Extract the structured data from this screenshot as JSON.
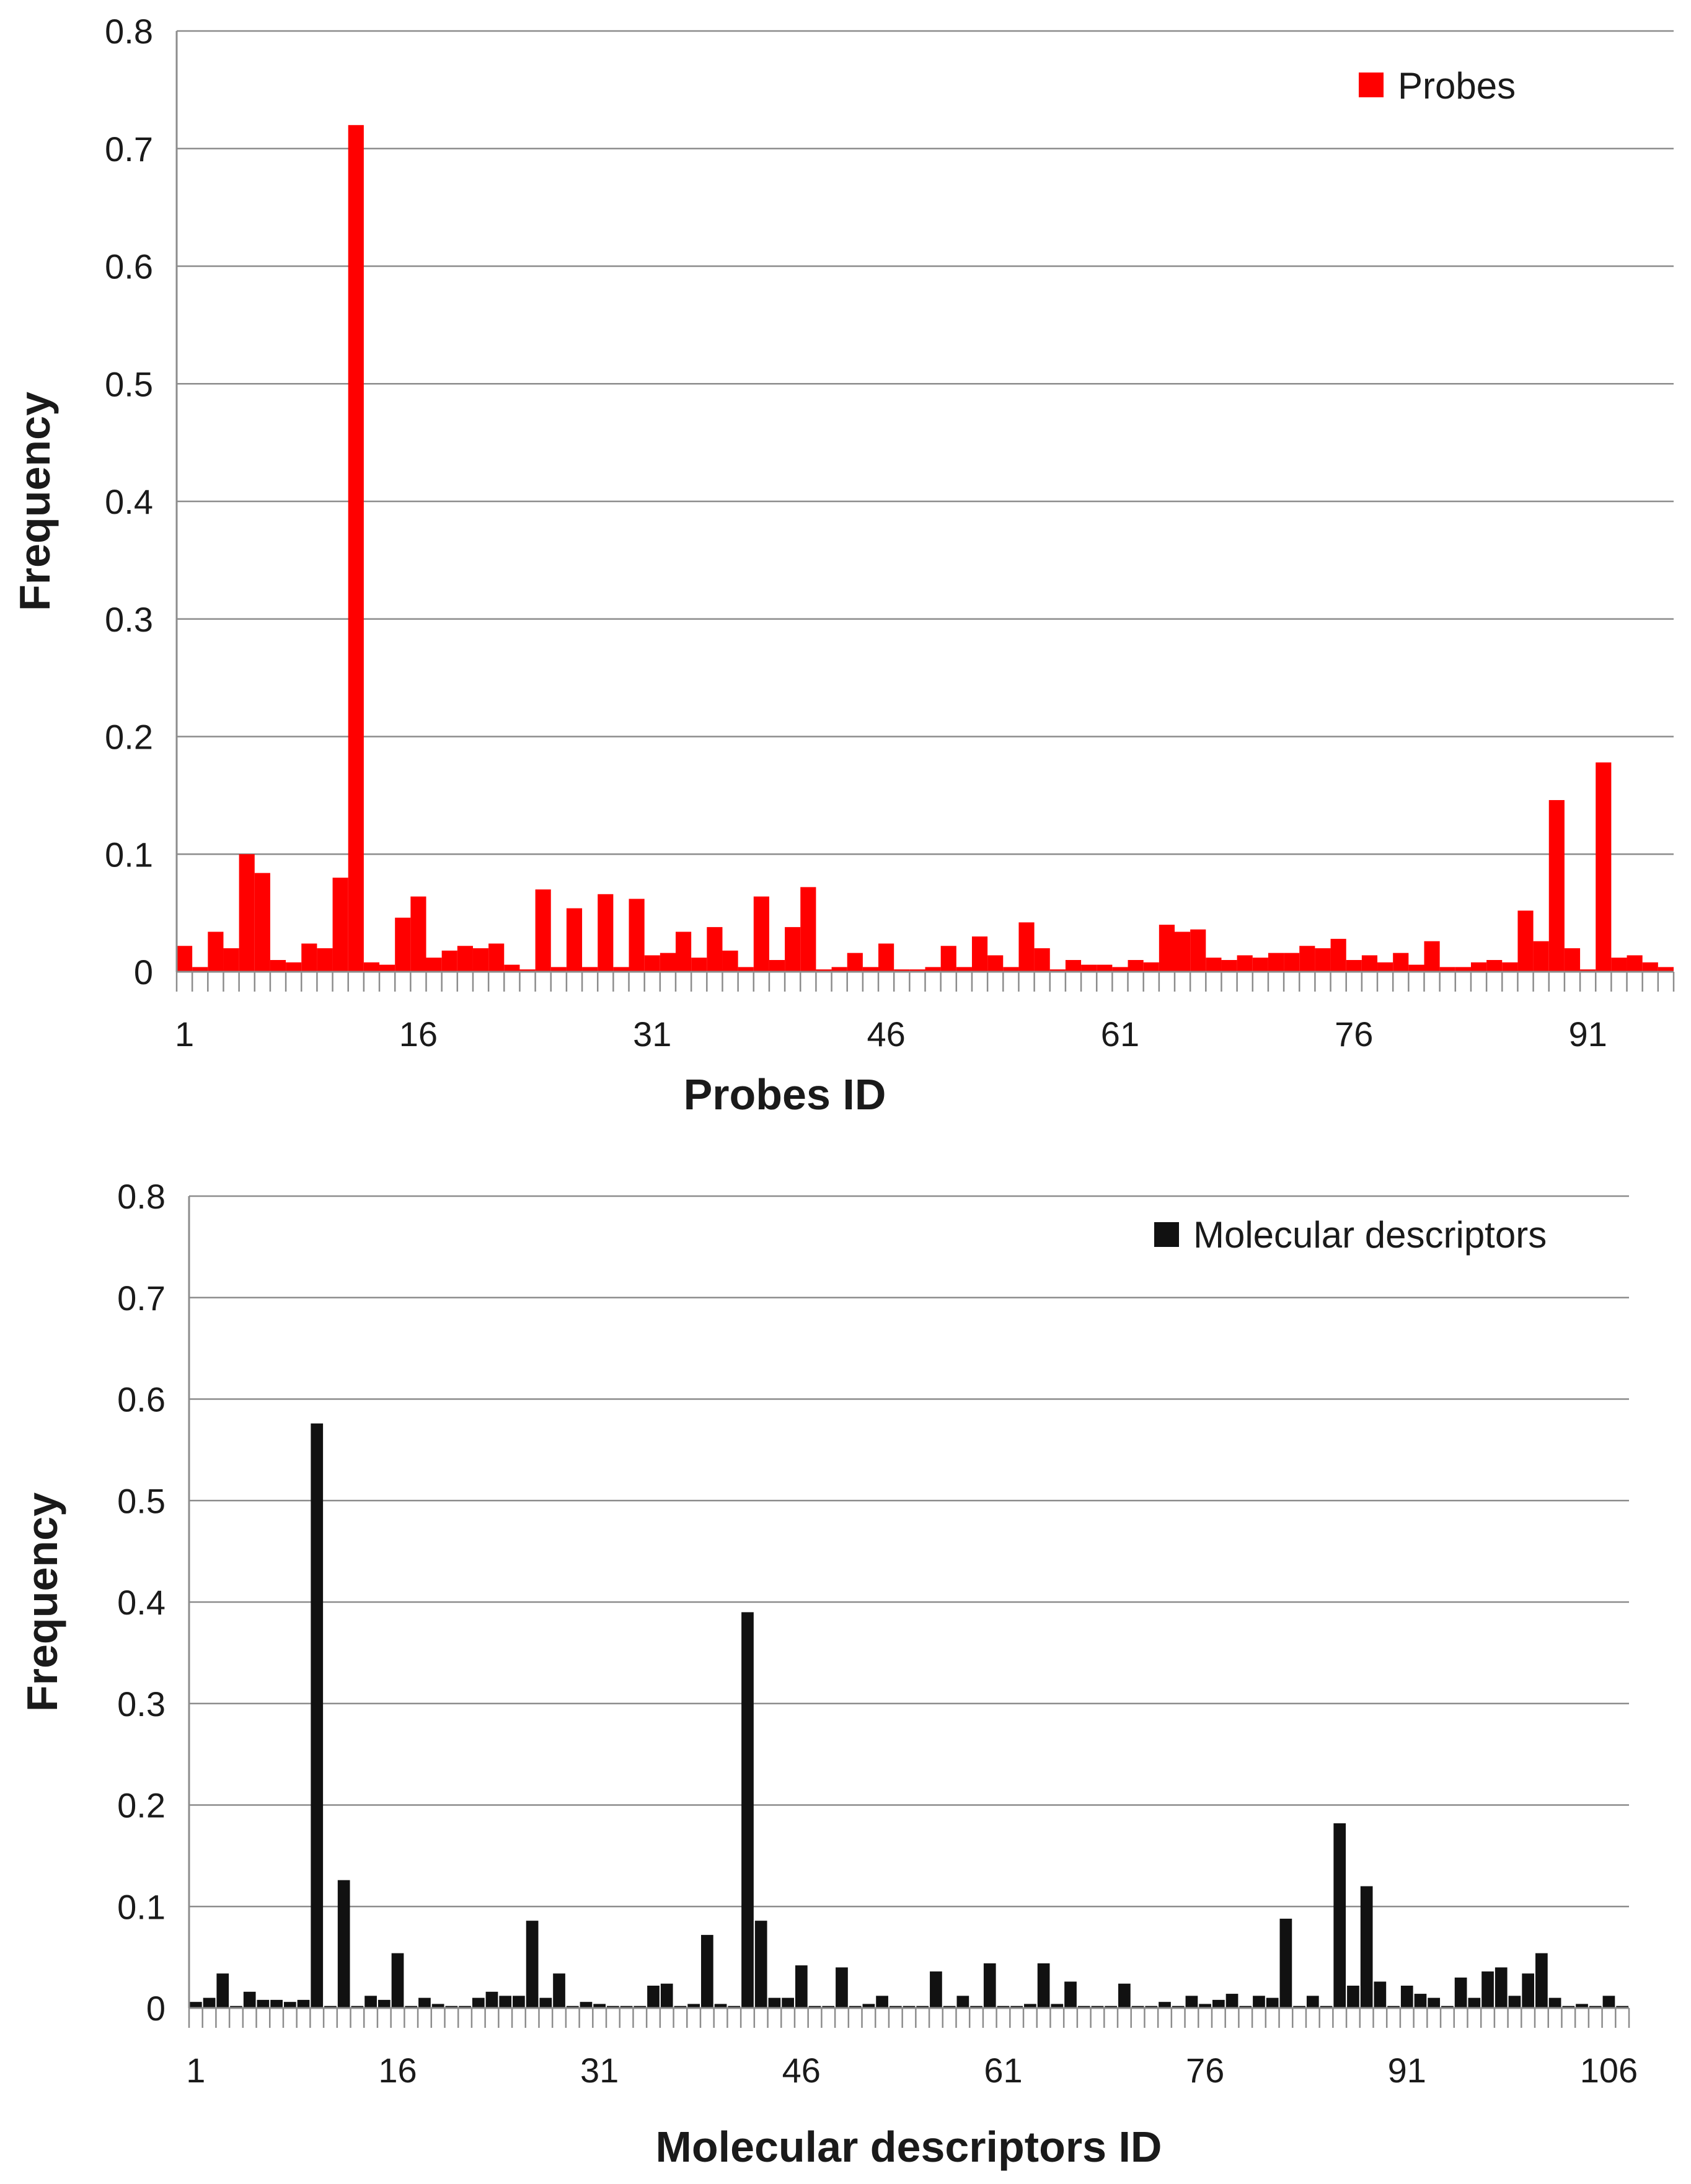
{
  "chart_data": [
    {
      "type": "bar",
      "title": "",
      "xlabel": "Probes ID",
      "ylabel": "Frequency",
      "legend": "Probes",
      "legend_position": "top-right",
      "color": "#ff0000",
      "ylim": [
        0,
        0.8
      ],
      "yticks": [
        "0",
        "0.1",
        "0.2",
        "0.3",
        "0.4",
        "0.5",
        "0.6",
        "0.7",
        "0.8"
      ],
      "xtick_labels": [
        "1",
        "16",
        "31",
        "46",
        "61",
        "76",
        "91"
      ],
      "x_start": 1,
      "x_step": 15,
      "values": [
        0.022,
        0.004,
        0.034,
        0.02,
        0.1,
        0.084,
        0.01,
        0.008,
        0.024,
        0.02,
        0.08,
        0.72,
        0.008,
        0.006,
        0.046,
        0.064,
        0.012,
        0.018,
        0.022,
        0.02,
        0.024,
        0.006,
        0.002,
        0.07,
        0.004,
        0.054,
        0.004,
        0.066,
        0.004,
        0.062,
        0.014,
        0.016,
        0.034,
        0.012,
        0.038,
        0.018,
        0.004,
        0.064,
        0.01,
        0.038,
        0.072,
        0.002,
        0.004,
        0.016,
        0.004,
        0.024,
        0.002,
        0.002,
        0.004,
        0.022,
        0.004,
        0.03,
        0.014,
        0.004,
        0.042,
        0.02,
        0.002,
        0.01,
        0.006,
        0.006,
        0.004,
        0.01,
        0.008,
        0.04,
        0.034,
        0.036,
        0.012,
        0.01,
        0.014,
        0.012,
        0.016,
        0.016,
        0.022,
        0.02,
        0.028,
        0.01,
        0.014,
        0.008,
        0.016,
        0.006,
        0.026,
        0.004,
        0.004,
        0.008,
        0.01,
        0.008,
        0.052,
        0.026,
        0.146,
        0.02,
        0.002,
        0.178,
        0.012,
        0.014,
        0.008,
        0.004
      ]
    },
    {
      "type": "bar",
      "title": "",
      "xlabel": "Molecular descriptors ID",
      "ylabel": "Frequency",
      "legend": "Molecular descriptors",
      "legend_position": "top-right",
      "color": "#111111",
      "ylim": [
        0,
        0.8
      ],
      "yticks": [
        "0",
        "0.1",
        "0.2",
        "0.3",
        "0.4",
        "0.5",
        "0.6",
        "0.7",
        "0.8"
      ],
      "xtick_labels": [
        "1",
        "16",
        "31",
        "46",
        "61",
        "76",
        "91",
        "106"
      ],
      "x_start": 1,
      "x_step": 15,
      "values": [
        0.006,
        0.01,
        0.034,
        0.002,
        0.016,
        0.008,
        0.008,
        0.006,
        0.008,
        0.576,
        0.002,
        0.126,
        0.002,
        0.012,
        0.008,
        0.054,
        0.002,
        0.01,
        0.004,
        0.002,
        0.002,
        0.01,
        0.016,
        0.012,
        0.012,
        0.086,
        0.01,
        0.034,
        0.002,
        0.006,
        0.004,
        0.002,
        0.002,
        0.002,
        0.022,
        0.024,
        0.002,
        0.004,
        0.072,
        0.004,
        0.002,
        0.39,
        0.086,
        0.01,
        0.01,
        0.042,
        0.002,
        0.002,
        0.04,
        0.002,
        0.004,
        0.012,
        0.002,
        0.002,
        0.002,
        0.036,
        0.002,
        0.012,
        0.002,
        0.044,
        0.002,
        0.002,
        0.004,
        0.044,
        0.004,
        0.026,
        0.002,
        0.002,
        0.002,
        0.024,
        0.002,
        0.002,
        0.006,
        0.002,
        0.012,
        0.004,
        0.008,
        0.014,
        0.002,
        0.012,
        0.01,
        0.088,
        0.002,
        0.012,
        0.002,
        0.182,
        0.022,
        0.12,
        0.026,
        0.002,
        0.022,
        0.014,
        0.01,
        0.002,
        0.03,
        0.01,
        0.036,
        0.04,
        0.012,
        0.034,
        0.054,
        0.01,
        0.002,
        0.004,
        0.002,
        0.012,
        0.002
      ]
    }
  ]
}
